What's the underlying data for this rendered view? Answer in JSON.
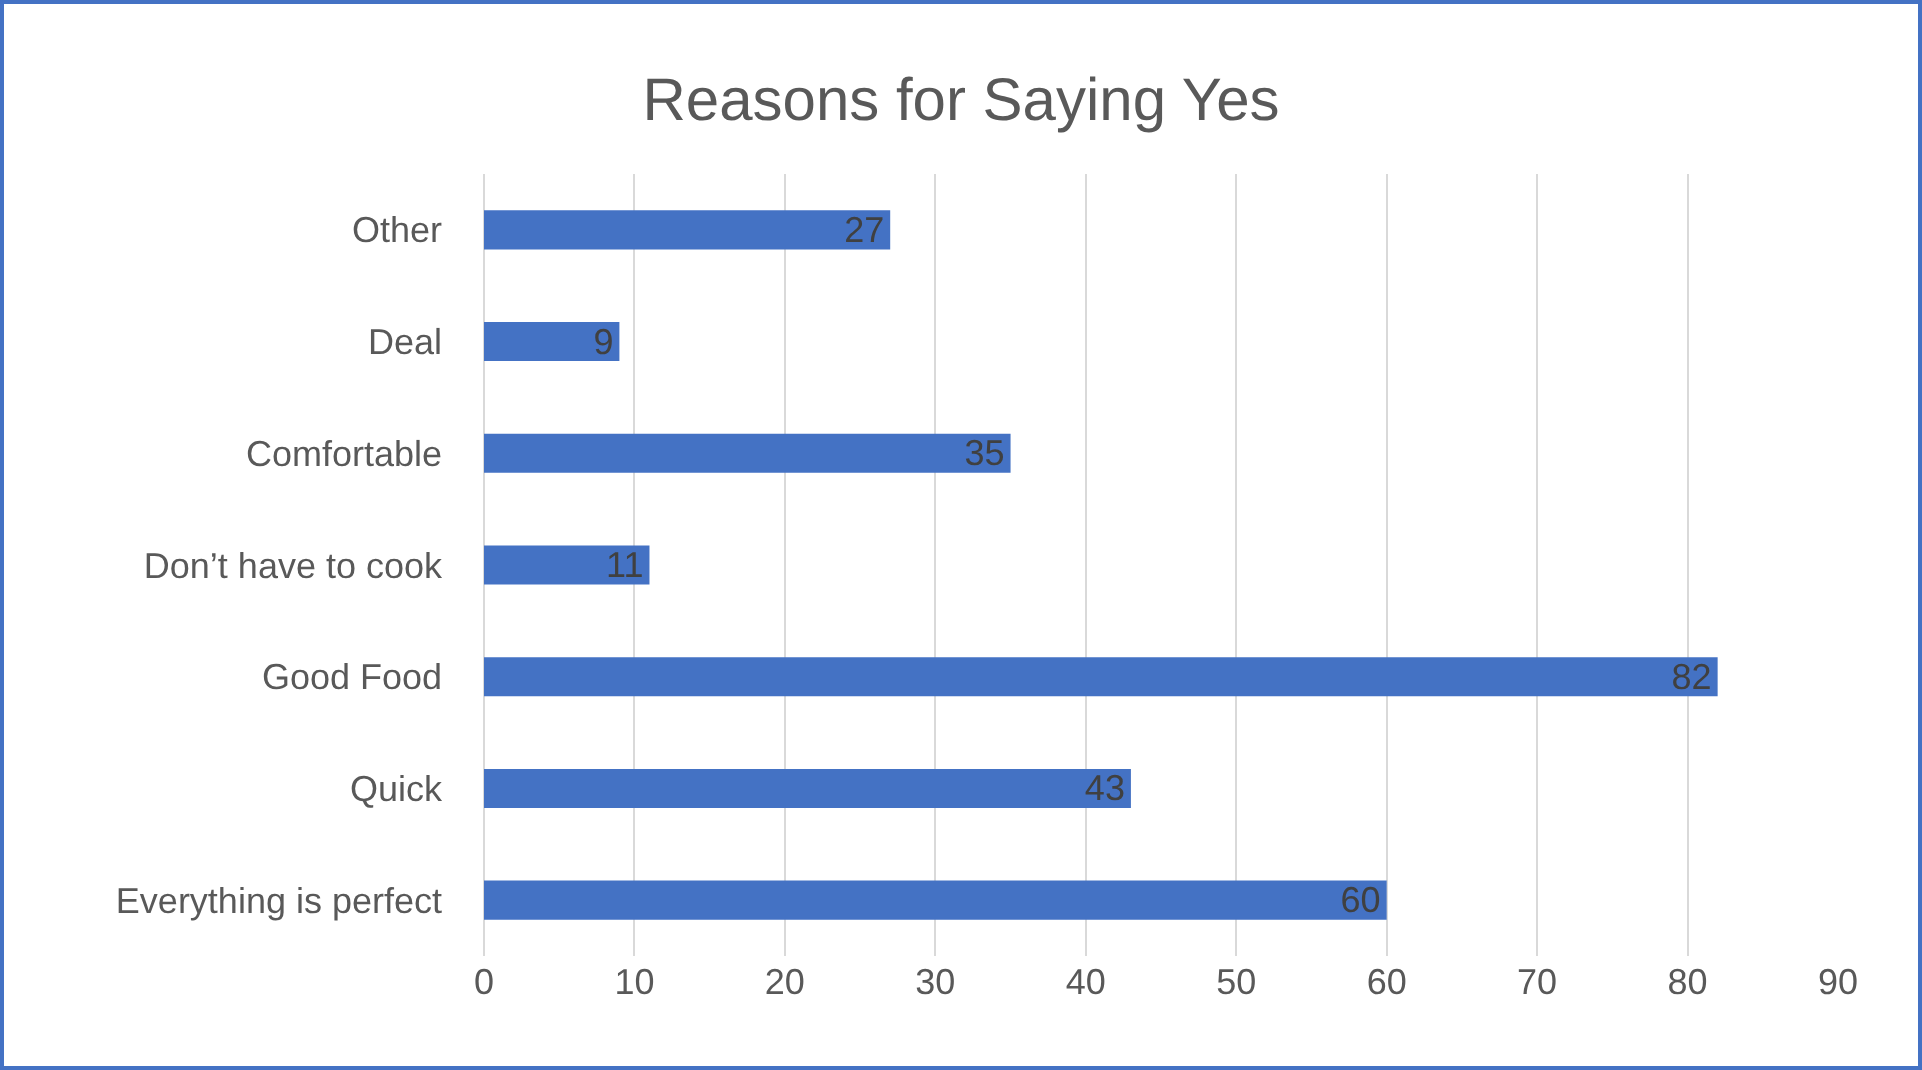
{
  "chart_data": {
    "type": "bar",
    "orientation": "horizontal",
    "title": "Reasons for Saying Yes",
    "categories": [
      "Other",
      "Deal",
      "Comfortable",
      "Don’t have to cook",
      "Good Food",
      "Quick",
      "Everything is perfect"
    ],
    "values": [
      27,
      9,
      35,
      11,
      82,
      43,
      60
    ],
    "color": "#4472c4",
    "xlim": [
      0,
      90
    ],
    "xticks": [
      0,
      10,
      20,
      30,
      40,
      50,
      60,
      70,
      80,
      90
    ],
    "grid": "x",
    "data_labels": true
  }
}
